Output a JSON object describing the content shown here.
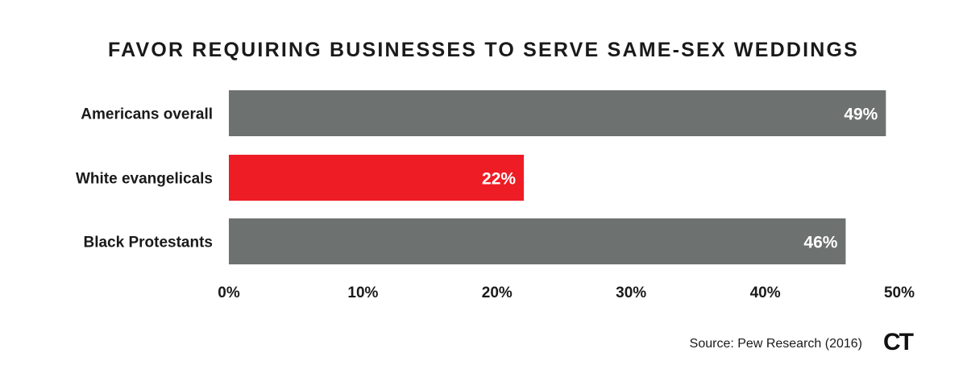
{
  "chart_data": {
    "type": "bar",
    "orientation": "horizontal",
    "title": "FAVOR REQUIRING BUSINESSES TO SERVE SAME-SEX WEDDINGS",
    "categories": [
      "Americans overall",
      "White evangelicals",
      "Black Protestants"
    ],
    "values": [
      49,
      22,
      46
    ],
    "data_labels": [
      "49%",
      "22%",
      "46%"
    ],
    "bar_colors": [
      "#6d7170",
      "#ee1c25",
      "#6d7170"
    ],
    "xlim": [
      0,
      50
    ],
    "xticks": [
      0,
      10,
      20,
      30,
      40,
      50
    ],
    "xtick_labels": [
      "0%",
      "10%",
      "20%",
      "30%",
      "40%",
      "50%"
    ],
    "xlabel": "",
    "ylabel": "",
    "grid": false,
    "legend": "none"
  },
  "footer": {
    "source": "Source: Pew Research (2016)",
    "logo": "CT"
  }
}
